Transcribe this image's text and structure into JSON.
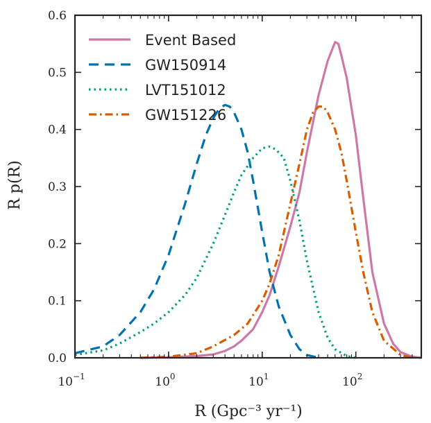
{
  "chart_data": {
    "type": "line",
    "xlabel": "R (Gpc⁻³ yr⁻¹)",
    "ylabel": "R p(R)",
    "xscale": "log",
    "xlim": [
      0.1,
      500
    ],
    "ylim": [
      0,
      0.6
    ],
    "x_ticks": [
      {
        "value": 0.1,
        "mant": "10",
        "exp": "−1"
      },
      {
        "value": 1,
        "mant": "10",
        "exp": "0"
      },
      {
        "value": 10,
        "mant": "10",
        "exp": "1"
      },
      {
        "value": 100,
        "mant": "10",
        "exp": "2"
      }
    ],
    "y_ticks": [
      {
        "value": 0.0,
        "label": "0.0"
      },
      {
        "value": 0.1,
        "label": "0.1"
      },
      {
        "value": 0.2,
        "label": "0.2"
      },
      {
        "value": 0.3,
        "label": "0.3"
      },
      {
        "value": 0.4,
        "label": "0.4"
      },
      {
        "value": 0.5,
        "label": "0.5"
      },
      {
        "value": 0.6,
        "label": "0.6"
      }
    ],
    "grid": false,
    "legend_position": "upper-left",
    "series": [
      {
        "name": "Event Based",
        "color": "#cc79a7",
        "style": "solid",
        "points": [
          [
            0.5,
            0
          ],
          [
            1,
            0.001
          ],
          [
            2,
            0.003
          ],
          [
            3,
            0.006
          ],
          [
            4,
            0.012
          ],
          [
            5,
            0.02
          ],
          [
            6,
            0.03
          ],
          [
            8,
            0.05
          ],
          [
            10,
            0.08
          ],
          [
            12,
            0.11
          ],
          [
            15,
            0.16
          ],
          [
            20,
            0.23
          ],
          [
            25,
            0.29
          ],
          [
            30,
            0.36
          ],
          [
            40,
            0.46
          ],
          [
            50,
            0.52
          ],
          [
            60,
            0.553
          ],
          [
            65,
            0.55
          ],
          [
            70,
            0.53
          ],
          [
            80,
            0.49
          ],
          [
            100,
            0.39
          ],
          [
            120,
            0.28
          ],
          [
            150,
            0.15
          ],
          [
            200,
            0.06
          ],
          [
            250,
            0.025
          ],
          [
            300,
            0.01
          ],
          [
            400,
            0.002
          ],
          [
            500,
            0
          ]
        ]
      },
      {
        "name": "GW150914",
        "color": "#0072b2",
        "style": "dashed",
        "points": [
          [
            0.1,
            0.008
          ],
          [
            0.2,
            0.02
          ],
          [
            0.3,
            0.04
          ],
          [
            0.5,
            0.08
          ],
          [
            0.7,
            0.12
          ],
          [
            1,
            0.18
          ],
          [
            1.5,
            0.27
          ],
          [
            2,
            0.34
          ],
          [
            2.5,
            0.39
          ],
          [
            3,
            0.42
          ],
          [
            3.5,
            0.437
          ],
          [
            4,
            0.443
          ],
          [
            4.5,
            0.44
          ],
          [
            5,
            0.43
          ],
          [
            6,
            0.4
          ],
          [
            7,
            0.36
          ],
          [
            8,
            0.31
          ],
          [
            10,
            0.22
          ],
          [
            12,
            0.15
          ],
          [
            15,
            0.09
          ],
          [
            20,
            0.04
          ],
          [
            25,
            0.015
          ],
          [
            30,
            0.005
          ],
          [
            40,
            0
          ]
        ]
      },
      {
        "name": "LVT151012",
        "color": "#009e73",
        "style": "dotted",
        "points": [
          [
            0.1,
            0.005
          ],
          [
            0.2,
            0.013
          ],
          [
            0.3,
            0.025
          ],
          [
            0.5,
            0.045
          ],
          [
            0.7,
            0.06
          ],
          [
            1,
            0.08
          ],
          [
            1.5,
            0.11
          ],
          [
            2,
            0.14
          ],
          [
            3,
            0.2
          ],
          [
            4,
            0.25
          ],
          [
            5,
            0.29
          ],
          [
            6,
            0.32
          ],
          [
            8,
            0.35
          ],
          [
            10,
            0.367
          ],
          [
            12,
            0.37
          ],
          [
            14,
            0.365
          ],
          [
            17,
            0.35
          ],
          [
            20,
            0.31
          ],
          [
            25,
            0.24
          ],
          [
            30,
            0.17
          ],
          [
            40,
            0.08
          ],
          [
            50,
            0.035
          ],
          [
            60,
            0.015
          ],
          [
            80,
            0.003
          ],
          [
            100,
            0
          ]
        ]
      },
      {
        "name": "GW151226",
        "color": "#d55e00",
        "style": "dashdot",
        "points": [
          [
            0.5,
            0
          ],
          [
            1,
            0.002
          ],
          [
            2,
            0.008
          ],
          [
            3,
            0.02
          ],
          [
            5,
            0.04
          ],
          [
            7,
            0.06
          ],
          [
            10,
            0.1
          ],
          [
            12,
            0.13
          ],
          [
            15,
            0.18
          ],
          [
            20,
            0.27
          ],
          [
            25,
            0.34
          ],
          [
            30,
            0.4
          ],
          [
            35,
            0.43
          ],
          [
            40,
            0.44
          ],
          [
            45,
            0.44
          ],
          [
            50,
            0.43
          ],
          [
            60,
            0.4
          ],
          [
            70,
            0.36
          ],
          [
            80,
            0.31
          ],
          [
            100,
            0.22
          ],
          [
            120,
            0.15
          ],
          [
            150,
            0.08
          ],
          [
            200,
            0.03
          ],
          [
            300,
            0.005
          ],
          [
            400,
            0
          ]
        ]
      }
    ]
  }
}
